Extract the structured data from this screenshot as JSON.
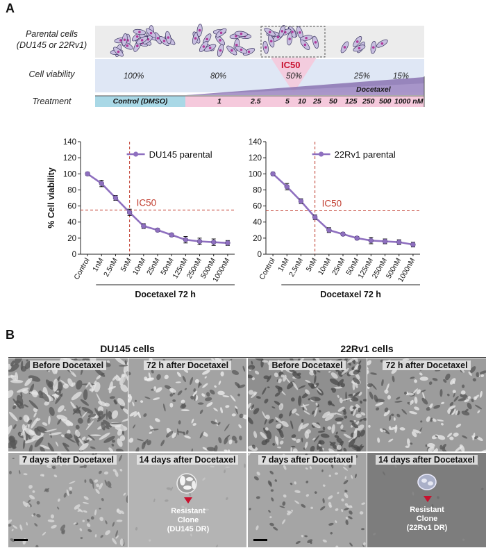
{
  "panel_a_label": "A",
  "panel_b_label": "B",
  "schematic": {
    "row_labels": {
      "parental": "Parental cells\n(DU145 or 22Rv1)",
      "viability": "Cell viability",
      "treatment": "Treatment"
    },
    "viability_values": [
      "100%",
      "80%",
      "50%",
      "25%",
      "15%"
    ],
    "ic50_label": "IC50",
    "drug_label": "Docetaxel",
    "control_label": "Control (DMSO)",
    "dose_ticks": [
      "1",
      "2.5",
      "5",
      "10",
      "25",
      "50",
      "125",
      "250",
      "500",
      "1000 nM"
    ],
    "colors": {
      "control_bar": "#a9d8e6",
      "treatment_bar": "#f5c9dc",
      "wedge": "#8b73b2",
      "ic50": "#c8102e",
      "viability_band": "#dfe7f5",
      "cells_band": "#ececec"
    }
  },
  "chart_data": [
    {
      "type": "line",
      "series_name": "DU145 parental",
      "categories": [
        "Control",
        "1nM",
        "2.5nM",
        "5nM",
        "10nM",
        "25nM",
        "50nM",
        "125nM",
        "250nM",
        "500nM",
        "1000nM"
      ],
      "values": [
        100,
        88,
        70,
        52,
        35,
        30,
        24,
        18,
        16,
        15,
        14
      ],
      "errors": [
        2,
        4,
        3,
        4,
        3,
        2,
        2,
        4,
        4,
        4,
        3
      ],
      "ylabel": "% Cell viability",
      "xlabel": "Docetaxel 72 h",
      "ylim": [
        0,
        140
      ],
      "yticks": [
        "0",
        "20",
        "40",
        "60",
        "80",
        "100",
        "120",
        "140"
      ],
      "ic50_label": "IC50",
      "ic50_y": 55,
      "ic50_category_index": 3,
      "line_color": "#8e6fbf",
      "ref_color": "#c0392b"
    },
    {
      "type": "line",
      "series_name": "22Rv1 parental",
      "categories": [
        "Control",
        "1nM",
        "2.5nM",
        "5nM",
        "10nM",
        "25nM",
        "50nM",
        "125nM",
        "250nM",
        "500nM",
        "1000nM"
      ],
      "values": [
        100,
        84,
        66,
        46,
        30,
        25,
        20,
        17,
        16,
        15,
        12
      ],
      "errors": [
        2,
        4,
        3,
        3,
        3,
        2,
        2,
        4,
        3,
        3,
        3
      ],
      "ylabel": "",
      "xlabel": "Docetaxel 72 h",
      "ylim": [
        0,
        140
      ],
      "yticks": [
        "0",
        "20",
        "40",
        "60",
        "80",
        "100",
        "120",
        "140"
      ],
      "ic50_label": "IC50",
      "ic50_y": 54,
      "ic50_category_index": 3,
      "line_color": "#8e6fbf",
      "ref_color": "#c0392b"
    }
  ],
  "micrographs": {
    "du145_header": "DU145 cells",
    "rv1_header": "22Rv1 cells",
    "titles": {
      "du_before": "Before Docetaxel",
      "du_72h": "72 h after Docetaxel",
      "du_7d": "7 days after Docetaxel",
      "du_14d": "14 days after Docetaxel",
      "rv_before": "Before Docetaxel",
      "rv_72h": "72 h after Docetaxel",
      "rv_7d": "7 days after Docetaxel",
      "rv_14d": "14 days after Docetaxel"
    },
    "du_clone_label": "Resistant Clone\n(DU145 DR)",
    "rv_clone_label": "Resistant Clone\n(22Rv1 DR)"
  }
}
